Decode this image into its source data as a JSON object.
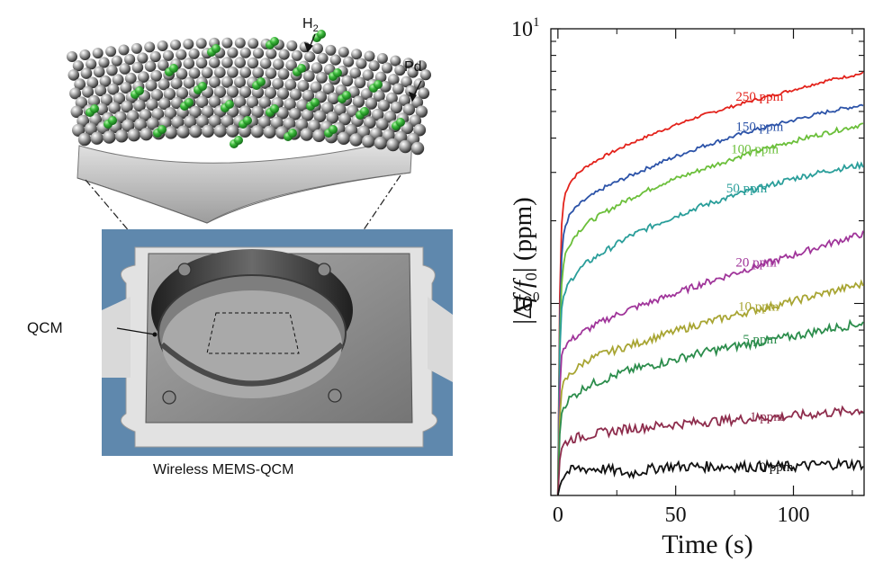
{
  "illustration": {
    "gas_label_main": "H",
    "gas_label_sub": "2",
    "coating_label": "Pd",
    "qcm_label": "QCM",
    "caption": "Wireless MEMS-QCM",
    "colors": {
      "hydrogen": "#3cb93c",
      "palladium": "#9a9a9a",
      "background_blue": "#5f88ad",
      "substrate": "#8e8e8e"
    }
  },
  "chart_data": {
    "type": "line",
    "xlabel": "Time (s)",
    "ylabel": "|Δf/f0| (ppm)",
    "ylabel_parts": {
      "bar_left": "|",
      "delta": "Δ",
      "f": "f",
      "slash": "/",
      "f0": "f",
      "sub0": "0",
      "bar_right": "|",
      "unit": " (ppm)"
    },
    "x_ticks": [
      "0",
      "50",
      "100"
    ],
    "x_tick_values": [
      0,
      50,
      100
    ],
    "xlim": [
      -3,
      130
    ],
    "y_scale": "log",
    "ylim": [
      0.2,
      10
    ],
    "y_tick_labels": [
      {
        "value": 10,
        "base": "10",
        "exp": "1"
      },
      {
        "value": 1,
        "base": "10",
        "exp": "0"
      }
    ],
    "series": [
      {
        "name": "250 ppm",
        "label": "250 ppm",
        "color": "#e3231c",
        "x": [
          0,
          1,
          2,
          3,
          5,
          8,
          12,
          20,
          30,
          45,
          60,
          80,
          100,
          115,
          130
        ],
        "y": [
          0.2,
          1.6,
          2.2,
          2.5,
          2.75,
          2.95,
          3.15,
          3.45,
          3.8,
          4.3,
          4.8,
          5.4,
          6.0,
          6.5,
          6.9
        ]
      },
      {
        "name": "150 ppm",
        "label": "150 ppm",
        "color": "#2c53a8",
        "x": [
          0,
          1,
          2,
          3,
          5,
          8,
          12,
          20,
          30,
          45,
          60,
          80,
          100,
          115,
          130
        ],
        "y": [
          0.2,
          1.2,
          1.7,
          1.9,
          2.1,
          2.25,
          2.4,
          2.65,
          2.9,
          3.3,
          3.7,
          4.2,
          4.65,
          5.0,
          5.3
        ]
      },
      {
        "name": "100 ppm",
        "label": "100 ppm",
        "color": "#6bbf3a",
        "x": [
          0,
          1,
          2,
          3,
          5,
          8,
          12,
          20,
          30,
          45,
          60,
          80,
          100,
          115,
          130
        ],
        "y": [
          0.2,
          1.0,
          1.3,
          1.5,
          1.65,
          1.8,
          1.95,
          2.15,
          2.4,
          2.75,
          3.05,
          3.5,
          3.9,
          4.2,
          4.5
        ]
      },
      {
        "name": "50 ppm",
        "label": "50 ppm",
        "color": "#2a9e9a",
        "x": [
          0,
          1,
          2,
          3,
          5,
          8,
          12,
          20,
          30,
          45,
          60,
          80,
          100,
          115,
          130
        ],
        "y": [
          0.2,
          0.9,
          1.0,
          1.1,
          1.2,
          1.3,
          1.4,
          1.55,
          1.75,
          2.0,
          2.25,
          2.55,
          2.85,
          3.05,
          3.2
        ]
      },
      {
        "name": "20 ppm",
        "label": "20 ppm",
        "color": "#a0359a",
        "x": [
          0,
          1,
          2,
          3,
          5,
          8,
          12,
          20,
          30,
          45,
          60,
          80,
          100,
          115,
          130
        ],
        "y": [
          0.2,
          0.6,
          0.68,
          0.7,
          0.73,
          0.76,
          0.8,
          0.87,
          0.95,
          1.05,
          1.17,
          1.33,
          1.5,
          1.65,
          1.8
        ]
      },
      {
        "name": "10 ppm",
        "label": "10 ppm",
        "color": "#a8a533",
        "x": [
          0,
          1,
          2,
          3,
          5,
          8,
          12,
          20,
          30,
          45,
          60,
          80,
          100,
          115,
          130
        ],
        "y": [
          0.2,
          0.45,
          0.5,
          0.52,
          0.55,
          0.58,
          0.62,
          0.66,
          0.7,
          0.77,
          0.84,
          0.93,
          1.02,
          1.1,
          1.18
        ]
      },
      {
        "name": "5 ppm",
        "label": "5 ppm",
        "color": "#2c8d4c",
        "x": [
          0,
          1,
          2,
          3,
          5,
          8,
          12,
          20,
          30,
          45,
          60,
          80,
          100,
          115,
          130
        ],
        "y": [
          0.2,
          0.38,
          0.41,
          0.43,
          0.45,
          0.47,
          0.5,
          0.53,
          0.57,
          0.61,
          0.66,
          0.71,
          0.76,
          0.81,
          0.85
        ]
      },
      {
        "name": "1 ppm",
        "label": "1 ppm",
        "color": "#8e2d4d",
        "x": [
          0,
          1,
          2,
          3,
          5,
          8,
          12,
          20,
          30,
          45,
          60,
          80,
          100,
          115,
          130
        ],
        "y": [
          0.2,
          0.29,
          0.3,
          0.31,
          0.32,
          0.325,
          0.33,
          0.34,
          0.35,
          0.36,
          0.37,
          0.38,
          0.39,
          0.4,
          0.41
        ]
      },
      {
        "name": "0 ppm",
        "label": "0 ppm",
        "color": "#111111",
        "x": [
          0,
          1,
          2,
          3,
          5,
          8,
          12,
          20,
          30,
          45,
          60,
          80,
          100,
          115,
          130
        ],
        "y": [
          0.2,
          0.22,
          0.23,
          0.24,
          0.245,
          0.25,
          0.25,
          0.25,
          0.24,
          0.255,
          0.255,
          0.255,
          0.255,
          0.26,
          0.26
        ]
      }
    ]
  }
}
